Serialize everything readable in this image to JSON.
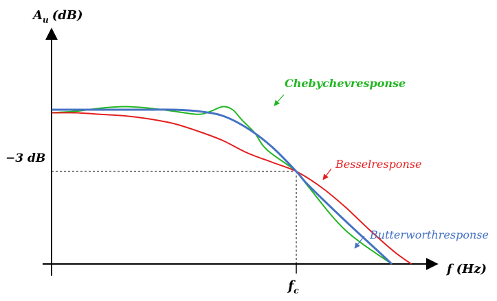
{
  "chart_data": {
    "type": "line",
    "title": "",
    "ylabel": {
      "main": "A",
      "sub": "u",
      "unit": "(dB)"
    },
    "xlabel": {
      "main": "f",
      "unit": "(Hz)"
    },
    "x_tick": {
      "main": "f",
      "sub": "c"
    },
    "y_tick": "−3 dB",
    "grid": false,
    "series": [
      {
        "name": "Chebychevresponse",
        "color": "#22b622",
        "points": [
          [
            0,
            0.98
          ],
          [
            0.1,
            0.99
          ],
          [
            0.2,
            1.01
          ],
          [
            0.3,
            1.02
          ],
          [
            0.4,
            1.01
          ],
          [
            0.5,
            0.99
          ],
          [
            0.6,
            0.97
          ],
          [
            0.65,
            0.99
          ],
          [
            0.7,
            1.02
          ],
          [
            0.74,
            1.0
          ],
          [
            0.78,
            0.93
          ],
          [
            0.83,
            0.85
          ],
          [
            0.88,
            0.74
          ],
          [
            1.0,
            0.6
          ],
          [
            1.05,
            0.5
          ],
          [
            1.2,
            0.22
          ],
          [
            1.39,
            0.0
          ]
        ]
      },
      {
        "name": "Besselresponse",
        "color": "#e41e1e",
        "points": [
          [
            0,
            0.98
          ],
          [
            0.1,
            0.98
          ],
          [
            0.2,
            0.97
          ],
          [
            0.3,
            0.96
          ],
          [
            0.4,
            0.94
          ],
          [
            0.5,
            0.91
          ],
          [
            0.6,
            0.86
          ],
          [
            0.7,
            0.8
          ],
          [
            0.8,
            0.72
          ],
          [
            0.9,
            0.66
          ],
          [
            1.0,
            0.6
          ],
          [
            1.1,
            0.5
          ],
          [
            1.2,
            0.37
          ],
          [
            1.3,
            0.22
          ],
          [
            1.4,
            0.08
          ],
          [
            1.47,
            0.0
          ]
        ]
      },
      {
        "name": "Butterworthresponse",
        "color": "#4472c4",
        "points": [
          [
            0,
            1.0
          ],
          [
            0.1,
            1.0
          ],
          [
            0.2,
            1.0
          ],
          [
            0.3,
            1.0
          ],
          [
            0.4,
            1.0
          ],
          [
            0.5,
            1.0
          ],
          [
            0.6,
            0.99
          ],
          [
            0.7,
            0.96
          ],
          [
            0.8,
            0.88
          ],
          [
            0.9,
            0.76
          ],
          [
            1.0,
            0.6
          ],
          [
            1.05,
            0.51
          ],
          [
            1.2,
            0.28
          ],
          [
            1.35,
            0.06
          ],
          [
            1.39,
            0.0
          ]
        ]
      }
    ],
    "reference": {
      "x": 1.0,
      "y": 0.6
    }
  }
}
